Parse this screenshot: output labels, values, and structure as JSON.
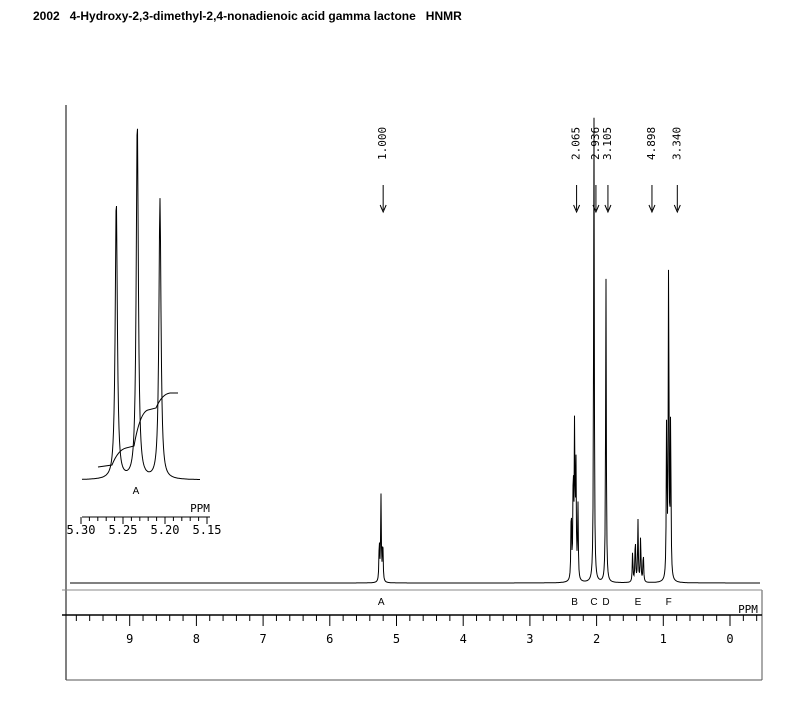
{
  "title": "2002   4-Hydroxy-2,3-dimethyl-2,4-nonadienoic acid gamma lactone   HNMR",
  "chart_data": {
    "type": "line",
    "xlabel": "PPM",
    "xlim": [
      9.9,
      -0.5
    ],
    "x_reversed": true,
    "ticks": [
      "9",
      "8",
      "7",
      "6",
      "5",
      "4",
      "3",
      "2",
      "1",
      "0"
    ],
    "tick_values": [
      9,
      8,
      7,
      6,
      5,
      4,
      3,
      2,
      1,
      0
    ],
    "peaks": [
      {
        "label": "A",
        "ppm": 5.23,
        "height": 0.18,
        "lines": [
          5.258,
          5.233,
          5.206
        ]
      },
      {
        "label": "B",
        "ppm": 2.33,
        "height": 0.32,
        "lines": [
          2.38,
          2.35,
          2.33,
          2.31,
          2.28
        ]
      },
      {
        "label": "C",
        "ppm": 2.04,
        "height": 1.0,
        "lines": [
          2.04
        ]
      },
      {
        "label": "D",
        "ppm": 1.86,
        "height": 0.65,
        "lines": [
          1.86
        ]
      },
      {
        "label": "E",
        "ppm": 1.38,
        "height": 0.13,
        "lines": [
          1.46,
          1.42,
          1.38,
          1.34,
          1.3
        ]
      },
      {
        "label": "F",
        "ppm": 0.92,
        "height": 0.7,
        "lines": [
          0.95,
          0.92,
          0.89
        ]
      }
    ],
    "integrals": [
      {
        "ppm": 5.23,
        "value": "1.000"
      },
      {
        "ppm": 2.33,
        "value": "2.065"
      },
      {
        "ppm": 2.04,
        "value": "2.936"
      },
      {
        "ppm": 1.86,
        "value": "3.105"
      },
      {
        "ppm": 1.2,
        "value": "4.898"
      },
      {
        "ppm": 0.82,
        "value": "3.340"
      }
    ],
    "inset": {
      "peak_label": "A",
      "xlabel": "PPM",
      "tick_labels": [
        "5.30",
        "5.25",
        "5.20",
        "5.15"
      ],
      "tick_values": [
        5.3,
        5.25,
        5.2,
        5.15
      ],
      "lines": [
        5.258,
        5.233,
        5.206
      ],
      "heights": [
        0.78,
        1.0,
        0.78
      ]
    }
  }
}
